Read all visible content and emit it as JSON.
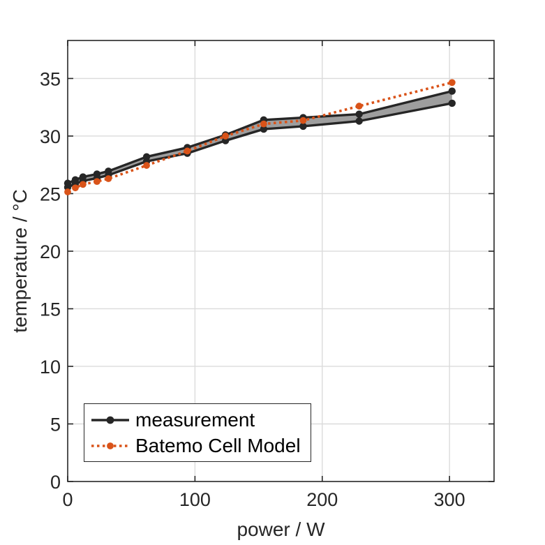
{
  "chart_data": {
    "type": "line",
    "title": "",
    "xlabel": "power / W",
    "ylabel": "temperature / °C",
    "xlim": [
      0,
      335
    ],
    "ylim": [
      0,
      38.3
    ],
    "x_ticks": [
      0,
      100,
      200,
      300
    ],
    "y_ticks": [
      0,
      5,
      10,
      15,
      20,
      25,
      30,
      35
    ],
    "grid": true,
    "legend_position": "lower-left",
    "x": [
      0,
      6,
      12,
      23,
      32,
      62,
      94,
      124,
      154,
      185,
      229,
      302
    ],
    "series": [
      {
        "name": "measurement (upper bound)",
        "color": "#262626",
        "line_style": "solid",
        "marker": "circle",
        "values": [
          25.9,
          26.2,
          26.45,
          26.7,
          26.95,
          28.2,
          29.0,
          30.1,
          31.4,
          31.6,
          31.9,
          33.9
        ]
      },
      {
        "name": "measurement (lower bound)",
        "color": "#262626",
        "line_style": "solid",
        "marker": "circle",
        "values": [
          25.55,
          25.85,
          26.1,
          26.35,
          26.6,
          27.8,
          28.5,
          29.6,
          30.6,
          30.85,
          31.3,
          32.85
        ]
      },
      {
        "name": "Batemo Cell Model",
        "color": "#D95319",
        "line_style": "dotted",
        "marker": "circle",
        "values": [
          25.15,
          25.5,
          25.8,
          26.05,
          26.3,
          27.45,
          28.7,
          30.0,
          31.05,
          31.35,
          32.6,
          34.65
        ]
      }
    ],
    "band": {
      "between": [
        "measurement (upper bound)",
        "measurement (lower bound)"
      ],
      "fill": "#9e9e9e"
    },
    "colors": {
      "measurement": "#262626",
      "batemo_orange": "#D95319",
      "grid": "#dbdbdb",
      "axis": "#262626",
      "background": "#ffffff"
    }
  },
  "legend": {
    "items": [
      {
        "label": "measurement",
        "color": "#262626",
        "style": "solid"
      },
      {
        "label": "Batemo Cell Model",
        "color": "#D95319",
        "style": "dotted"
      }
    ]
  }
}
